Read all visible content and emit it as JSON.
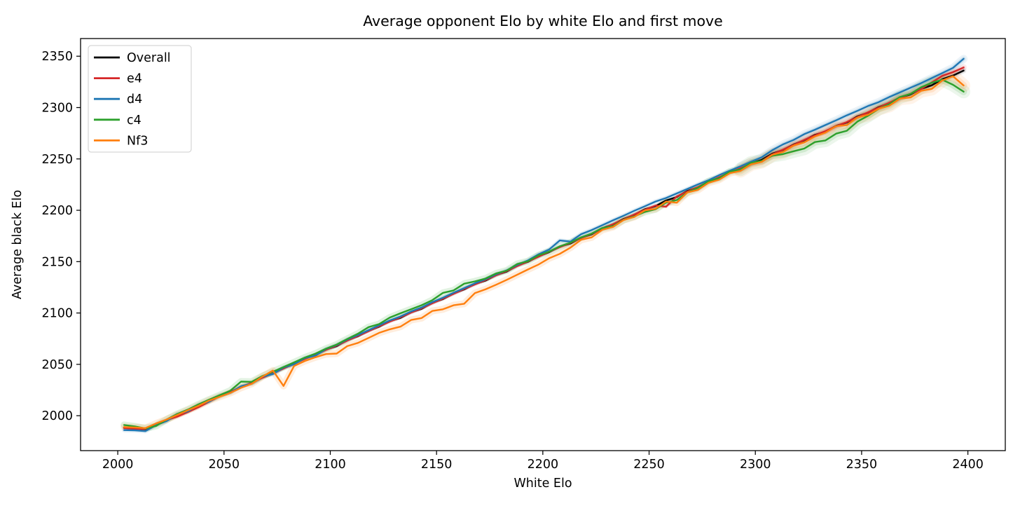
{
  "title": "Average opponent Elo by white Elo and first move",
  "xlabel": "White Elo",
  "ylabel": "Average black Elo",
  "chart_data": {
    "type": "line",
    "title": "Average opponent Elo by white Elo and first move",
    "xlabel": "White Elo",
    "ylabel": "Average black Elo",
    "grid": false,
    "legend_position": "upper left",
    "xlim": [
      1982.5,
      2417.6
    ],
    "ylim": [
      1966.0,
      2367.2
    ],
    "x_ticks": [
      2000,
      2050,
      2100,
      2150,
      2200,
      2250,
      2300,
      2350,
      2400
    ],
    "y_ticks": [
      2000,
      2050,
      2100,
      2150,
      2200,
      2250,
      2300,
      2350
    ],
    "band_opacity": 0.14,
    "x": [
      2003,
      2008,
      2013,
      2018,
      2023,
      2028,
      2033,
      2038,
      2043,
      2048,
      2053,
      2058,
      2063,
      2068,
      2073,
      2078,
      2083,
      2088,
      2093,
      2098,
      2103,
      2108,
      2113,
      2118,
      2123,
      2128,
      2133,
      2138,
      2143,
      2148,
      2153,
      2158,
      2163,
      2168,
      2173,
      2178,
      2183,
      2188,
      2193,
      2198,
      2203,
      2208,
      2213,
      2218,
      2223,
      2228,
      2233,
      2238,
      2243,
      2248,
      2253,
      2258,
      2263,
      2268,
      2273,
      2278,
      2283,
      2288,
      2293,
      2298,
      2303,
      2308,
      2313,
      2318,
      2323,
      2328,
      2333,
      2338,
      2343,
      2348,
      2353,
      2358,
      2363,
      2368,
      2373,
      2378,
      2383,
      2388,
      2393,
      2398
    ],
    "series": [
      {
        "name": "Overall",
        "color": "#000000",
        "band_width": 4,
        "values": [
          1988.3,
          1987.6,
          1986.8,
          1991.9,
          1995.3,
          2001.2,
          2004.8,
          2010.2,
          2014.2,
          2019.5,
          2022.7,
          2028.2,
          2031.5,
          2037.5,
          2041.1,
          2046.4,
          2050.5,
          2055.8,
          2058.9,
          2064.5,
          2067.8,
          2073.7,
          2077.4,
          2082.7,
          2086.7,
          2092.1,
          2095.2,
          2100.7,
          2104.1,
          2110.0,
          2113.6,
          2119.0,
          2123.0,
          2128.3,
          2131.5,
          2137.0,
          2140.3,
          2146.3,
          2149.9,
          2155.2,
          2159.3,
          2164.6,
          2167.7,
          2173.3,
          2176.6,
          2182.5,
          2186.2,
          2191.5,
          2195.5,
          2200.9,
          2204.0,
          2209.5,
          2212.9,
          2218.8,
          2222.4,
          2227.8,
          2231.8,
          2237.1,
          2240.3,
          2245.8,
          2249.1,
          2255.1,
          2258.7,
          2264.0,
          2268.1,
          2273.4,
          2276.5,
          2282.1,
          2285.4,
          2291.3,
          2295.0,
          2300.3,
          2304.3,
          2309.7,
          2312.8,
          2318.3,
          2321.7,
          2327.6,
          2331.2,
          2336.0
        ]
      },
      {
        "name": "e4",
        "color": "#d62728",
        "band_width": 5,
        "values": [
          1988.0,
          1987.1,
          1987.0,
          1991.6,
          1995.8,
          1999.1,
          2003.6,
          2008.3,
          2013.6,
          2019.0,
          2023.3,
          2027.9,
          2032.0,
          2036.9,
          2041.4,
          2046.0,
          2050.9,
          2055.3,
          2059.5,
          2064.2,
          2068.3,
          2073.1,
          2077.7,
          2082.3,
          2087.1,
          2091.6,
          2095.8,
          2100.4,
          2104.6,
          2109.4,
          2113.9,
          2118.6,
          2123.4,
          2127.8,
          2132.1,
          2136.7,
          2140.8,
          2145.7,
          2150.2,
          2154.8,
          2159.7,
          2164.1,
          2168.3,
          2173.0,
          2177.1,
          2181.9,
          2186.5,
          2191.1,
          2195.9,
          2200.4,
          2204.6,
          2203.5,
          2213.4,
          2218.2,
          2222.7,
          2227.4,
          2232.2,
          2236.6,
          2240.9,
          2245.5,
          2248.0,
          2254.5,
          2259.0,
          2263.6,
          2268.5,
          2272.9,
          2277.1,
          2281.8,
          2285.9,
          2290.7,
          2295.3,
          2299.9,
          2304.7,
          2309.2,
          2313.4,
          2318.0,
          2324.5,
          2331.0,
          2334.5,
          2339.0
        ]
      },
      {
        "name": "d4",
        "color": "#1f77b4",
        "band_width": 6,
        "values": [
          1986.0,
          1985.8,
          1985.0,
          1990.7,
          1994.8,
          2001.6,
          2004.2,
          2010.7,
          2013.7,
          2019.9,
          2022.3,
          2028.7,
          2031.1,
          2037.9,
          2040.6,
          2046.9,
          2050.1,
          2056.2,
          2058.4,
          2065.0,
          2068.8,
          2074.2,
          2078.6,
          2083.3,
          2088.0,
          2092.8,
          2096.6,
          2101.5,
          2105.3,
          2110.6,
          2114.9,
          2119.7,
          2124.2,
          2128.9,
          2132.8,
          2137.7,
          2141.5,
          2146.9,
          2151.2,
          2157.2,
          2161.8,
          2170.6,
          2169.5,
          2176.8,
          2180.8,
          2185.5,
          2190.2,
          2194.7,
          2199.5,
          2203.9,
          2208.5,
          2212.0,
          2216.4,
          2220.8,
          2225.2,
          2229.3,
          2234.3,
          2238.6,
          2242.8,
          2247.3,
          2251.6,
          2258.6,
          2264.2,
          2268.5,
          2274.1,
          2278.4,
          2283.0,
          2287.6,
          2292.4,
          2296.8,
          2301.5,
          2305.3,
          2310.3,
          2314.7,
          2319.3,
          2323.8,
          2328.7,
          2333.6,
          2338.7,
          2347.5
        ]
      },
      {
        "name": "c4",
        "color": "#2ca02c",
        "band_width": 10,
        "values": [
          1991.0,
          1989.6,
          1987.6,
          1990.0,
          1996.3,
          2001.7,
          2006.0,
          2011.0,
          2015.7,
          2020.0,
          2024.5,
          2033.2,
          2033.0,
          2038.5,
          2042.9,
          2047.4,
          2052.0,
          2056.6,
          2060.4,
          2065.3,
          2069.3,
          2074.7,
          2079.9,
          2086.2,
          2089.2,
          2095.6,
          2099.7,
          2103.7,
          2107.6,
          2112.5,
          2119.6,
          2122.0,
          2128.5,
          2130.8,
          2133.5,
          2138.5,
          2141.3,
          2147.8,
          2150.4,
          2156.2,
          2159.8,
          2164.9,
          2168.5,
          2173.6,
          2177.4,
          2182.8,
          2184.7,
          2190.7,
          2194.0,
          2198.4,
          2201.0,
          2207.5,
          2209.9,
          2217.3,
          2221.9,
          2228.3,
          2231.3,
          2237.6,
          2239.8,
          2246.3,
          2248.1,
          2253.1,
          2254.7,
          2257.5,
          2260.1,
          2266.4,
          2268.0,
          2274.6,
          2277.4,
          2286.3,
          2292.0,
          2298.8,
          2303.3,
          2310.2,
          2313.3,
          2319.8,
          2324.2,
          2327.1,
          2322.2,
          2315.5
        ]
      },
      {
        "name": "Nf3",
        "color": "#ff7f0e",
        "band_width": 10,
        "values": [
          1989.0,
          1988.6,
          1988.0,
          1992.4,
          1996.3,
          2000.7,
          2005.3,
          2009.7,
          2014.7,
          2018.5,
          2022.2,
          2027.2,
          2031.0,
          2038.0,
          2044.0,
          2029.0,
          2048.5,
          2053.3,
          2056.9,
          2060.0,
          2060.5,
          2067.7,
          2070.9,
          2075.7,
          2080.7,
          2084.1,
          2086.7,
          2093.2,
          2095.1,
          2102.0,
          2103.6,
          2107.5,
          2109.0,
          2119.3,
          2123.0,
          2127.5,
          2132.3,
          2137.3,
          2142.4,
          2147.2,
          2153.3,
          2157.6,
          2163.7,
          2171.3,
          2173.6,
          2181.0,
          2183.7,
          2190.5,
          2193.5,
          2199.9,
          2201.5,
          2208.5,
          2207.4,
          2217.3,
          2219.9,
          2226.8,
          2229.8,
          2236.1,
          2238.3,
          2244.8,
          2247.1,
          2254.1,
          2256.7,
          2263.0,
          2266.1,
          2271.9,
          2275.6,
          2282.0,
          2282.9,
          2290.3,
          2293.0,
          2298.8,
          2301.8,
          2308.7,
          2309.8,
          2316.3,
          2318.2,
          2326.5,
          2330.5,
          2321.5
        ]
      }
    ]
  }
}
